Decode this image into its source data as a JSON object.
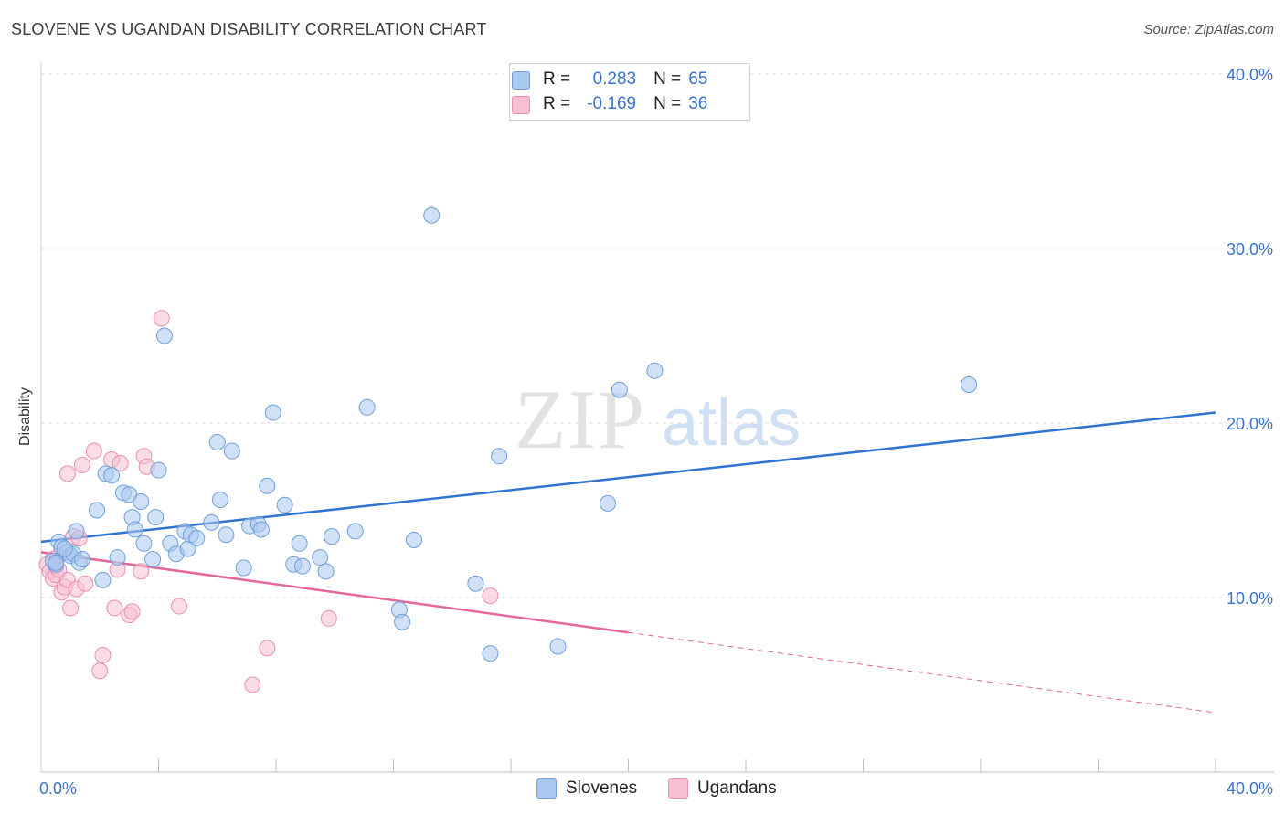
{
  "title": "SLOVENE VS UGANDAN DISABILITY CORRELATION CHART",
  "source": "Source: ZipAtlas.com",
  "watermark": {
    "zip": "ZIP",
    "atlas": "atlas"
  },
  "legend": {
    "rows": [
      {
        "r_label": "R =",
        "r_value": "0.283",
        "n_label": "N =",
        "n_value": "65"
      },
      {
        "r_label": "R =",
        "r_value": "-0.169",
        "n_label": "N =",
        "n_value": "36"
      }
    ]
  },
  "bottom_legend": {
    "slovenes": "Slovenes",
    "ugandans": "Ugandans"
  },
  "colors": {
    "slovenes_fill": "#a9c8f0",
    "slovenes_stroke": "#6f9fdc",
    "slovenes_line": "#2f74d0",
    "ugandans_fill": "#f7bfd2",
    "ugandans_stroke": "#ea8fae",
    "ugandans_line": "#e2679a",
    "tick_text": "#3a73c9",
    "grid": "#dcdcdc"
  },
  "chart_data": {
    "type": "scatter",
    "title": "SLOVENE VS UGANDAN DISABILITY CORRELATION CHART",
    "xlabel": "",
    "ylabel": "Disability",
    "xlim": [
      0,
      40
    ],
    "ylim": [
      0,
      40
    ],
    "x_tick_labels": [
      "0.0%",
      "40.0%"
    ],
    "y_ticks": [
      10,
      20,
      30,
      40
    ],
    "y_tick_labels": [
      "10.0%",
      "20.0%",
      "30.0%",
      "40.0%"
    ],
    "grid": true,
    "legend_position": "top-center",
    "series": [
      {
        "name": "Slovenes",
        "r": 0.283,
        "n": 65,
        "trend": {
          "x": [
            0,
            40
          ],
          "y": [
            13.2,
            20.6
          ]
        },
        "points": [
          [
            0.4,
            12.1
          ],
          [
            0.5,
            11.9
          ],
          [
            0.6,
            13.2
          ],
          [
            0.7,
            12.9
          ],
          [
            0.9,
            12.6
          ],
          [
            1.0,
            12.4
          ],
          [
            1.1,
            12.5
          ],
          [
            1.2,
            13.8
          ],
          [
            1.3,
            12.0
          ],
          [
            1.4,
            12.2
          ],
          [
            1.9,
            15.0
          ],
          [
            2.1,
            11.0
          ],
          [
            2.2,
            17.1
          ],
          [
            2.4,
            17.0
          ],
          [
            2.6,
            12.3
          ],
          [
            2.8,
            16.0
          ],
          [
            3.0,
            15.9
          ],
          [
            3.1,
            14.6
          ],
          [
            3.2,
            13.9
          ],
          [
            3.4,
            15.5
          ],
          [
            3.5,
            13.1
          ],
          [
            3.8,
            12.2
          ],
          [
            3.9,
            14.6
          ],
          [
            4.0,
            17.3
          ],
          [
            4.2,
            25.0
          ],
          [
            4.4,
            13.1
          ],
          [
            4.6,
            12.5
          ],
          [
            4.9,
            13.8
          ],
          [
            5.0,
            12.8
          ],
          [
            5.1,
            13.6
          ],
          [
            5.3,
            13.4
          ],
          [
            5.8,
            14.3
          ],
          [
            6.0,
            18.9
          ],
          [
            6.1,
            15.6
          ],
          [
            6.3,
            13.6
          ],
          [
            6.5,
            18.4
          ],
          [
            6.9,
            11.7
          ],
          [
            7.1,
            14.1
          ],
          [
            7.4,
            14.2
          ],
          [
            7.5,
            13.9
          ],
          [
            7.7,
            16.4
          ],
          [
            7.9,
            20.6
          ],
          [
            8.3,
            15.3
          ],
          [
            8.6,
            11.9
          ],
          [
            8.8,
            13.1
          ],
          [
            8.9,
            11.8
          ],
          [
            9.5,
            12.3
          ],
          [
            9.7,
            11.5
          ],
          [
            9.9,
            13.5
          ],
          [
            10.7,
            13.8
          ],
          [
            11.1,
            20.9
          ],
          [
            12.2,
            9.3
          ],
          [
            12.3,
            8.6
          ],
          [
            12.7,
            13.3
          ],
          [
            13.3,
            31.9
          ],
          [
            14.8,
            10.8
          ],
          [
            15.3,
            6.8
          ],
          [
            15.6,
            18.1
          ],
          [
            17.6,
            7.2
          ],
          [
            19.3,
            15.4
          ],
          [
            19.7,
            21.9
          ],
          [
            20.9,
            23.0
          ],
          [
            31.6,
            22.2
          ],
          [
            0.5,
            12.0
          ],
          [
            0.8,
            12.8
          ]
        ]
      },
      {
        "name": "Ugandans",
        "r": -0.169,
        "n": 36,
        "trend": {
          "x": [
            0,
            20
          ],
          "y": [
            12.6,
            8.0
          ]
        },
        "trend_dashed": {
          "x": [
            20,
            40
          ],
          "y": [
            8.0,
            3.4
          ]
        },
        "points": [
          [
            0.2,
            11.9
          ],
          [
            0.3,
            11.5
          ],
          [
            0.4,
            12.2
          ],
          [
            0.4,
            11.1
          ],
          [
            0.5,
            11.8
          ],
          [
            0.5,
            11.3
          ],
          [
            0.6,
            12.4
          ],
          [
            0.7,
            10.3
          ],
          [
            0.8,
            10.6
          ],
          [
            0.9,
            11.0
          ],
          [
            0.9,
            17.1
          ],
          [
            1.0,
            9.4
          ],
          [
            1.1,
            13.5
          ],
          [
            1.2,
            10.5
          ],
          [
            1.3,
            13.4
          ],
          [
            1.4,
            17.6
          ],
          [
            1.5,
            10.8
          ],
          [
            1.8,
            18.4
          ],
          [
            2.0,
            5.8
          ],
          [
            2.1,
            6.7
          ],
          [
            2.4,
            17.9
          ],
          [
            2.5,
            9.4
          ],
          [
            2.6,
            11.6
          ],
          [
            2.7,
            17.7
          ],
          [
            3.0,
            9.0
          ],
          [
            3.1,
            9.2
          ],
          [
            3.4,
            11.5
          ],
          [
            3.5,
            18.1
          ],
          [
            3.6,
            17.5
          ],
          [
            4.1,
            26.0
          ],
          [
            4.7,
            9.5
          ],
          [
            7.2,
            5.0
          ],
          [
            7.7,
            7.1
          ],
          [
            9.8,
            8.8
          ],
          [
            15.3,
            10.1
          ],
          [
            0.6,
            11.6
          ]
        ]
      }
    ]
  }
}
